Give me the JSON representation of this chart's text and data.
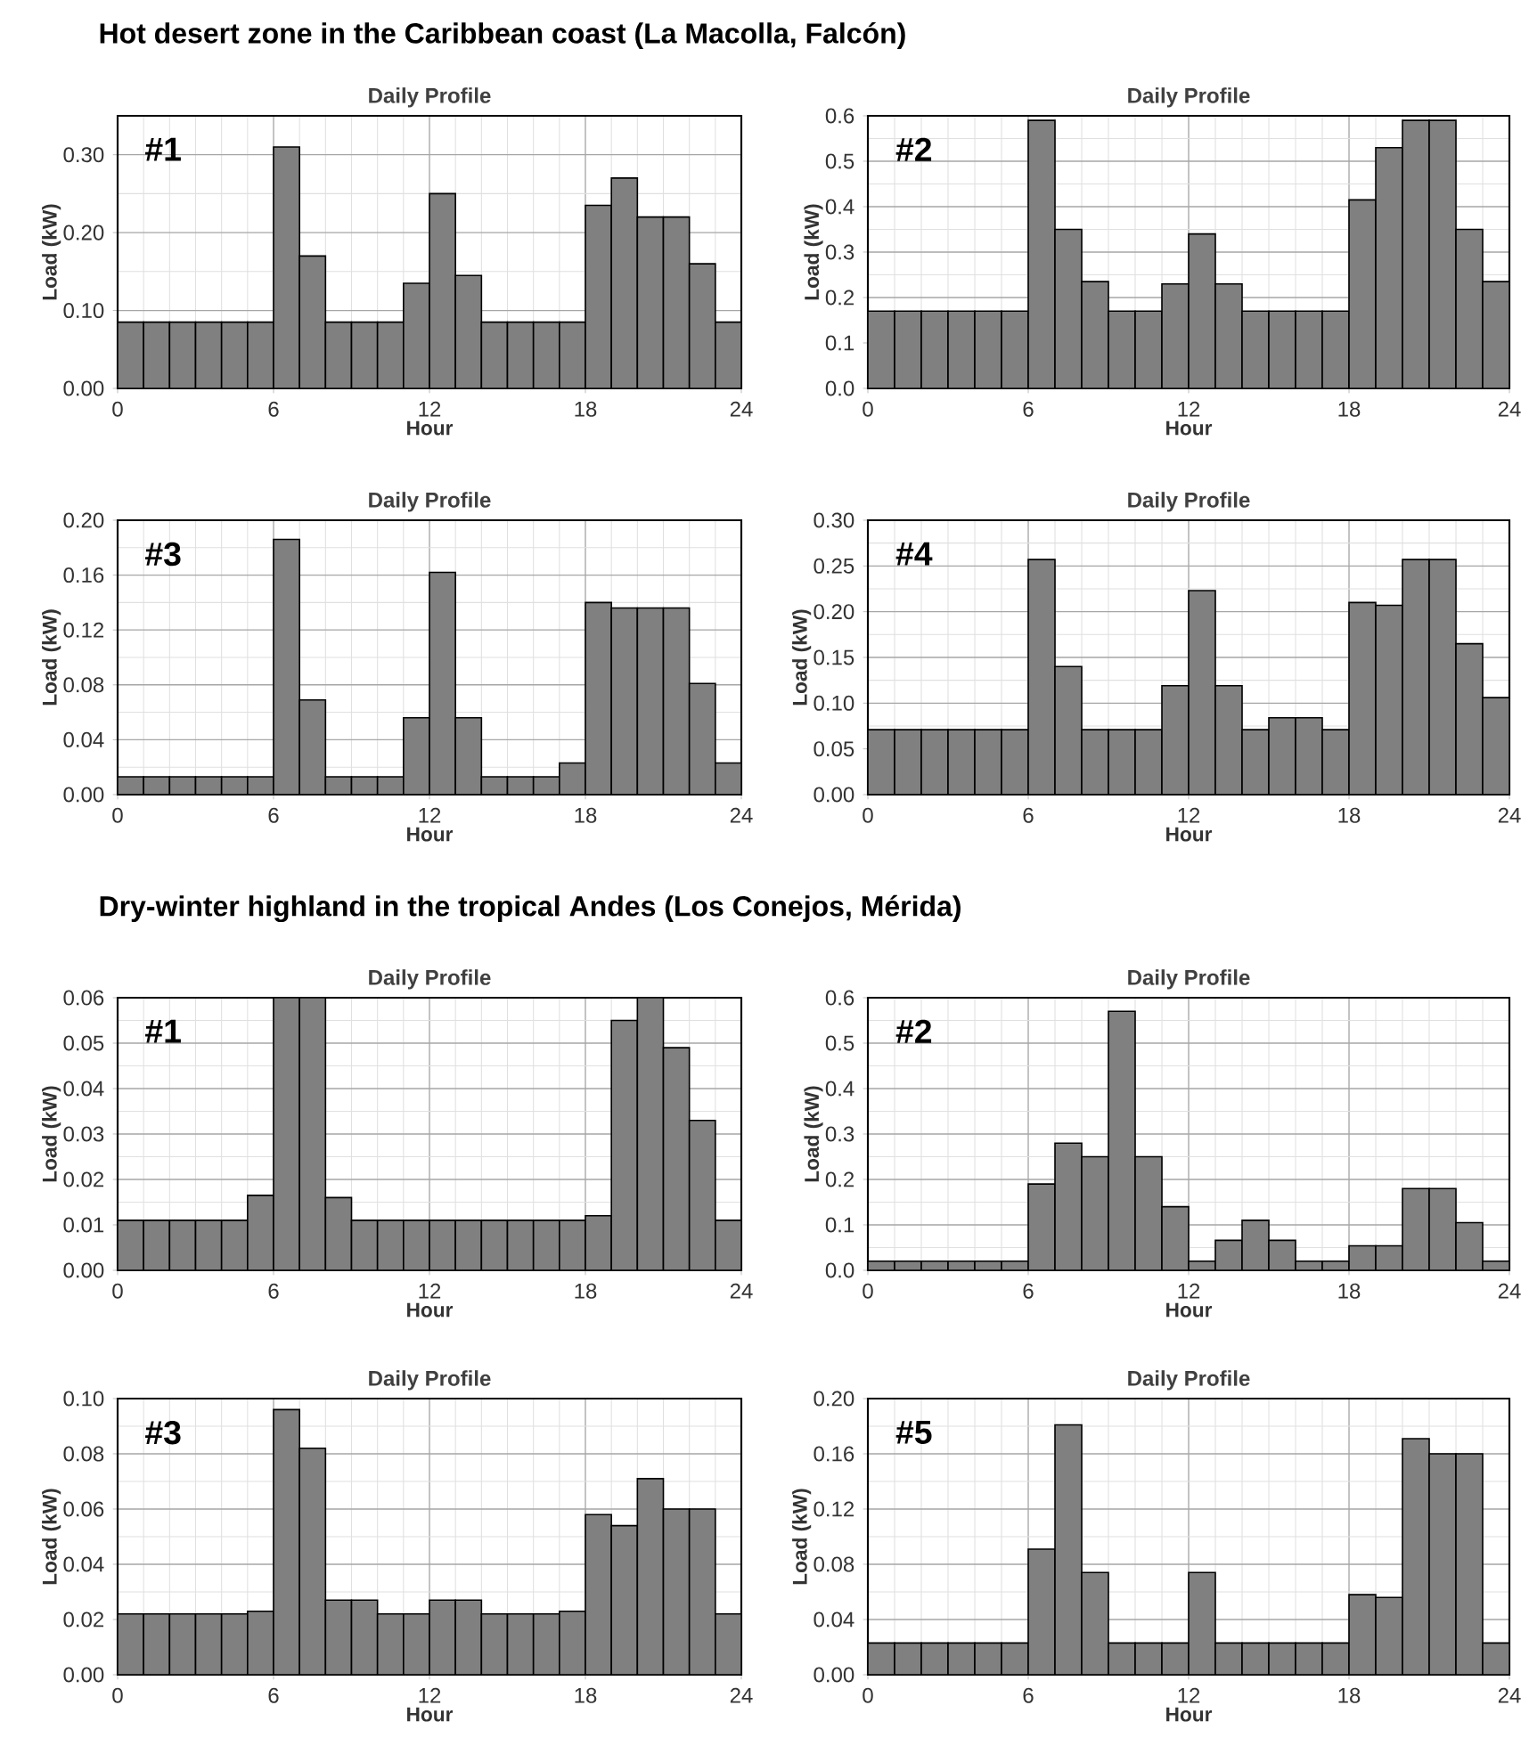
{
  "chart_data": [
    {
      "type": "other",
      "title": "Hot desert zone in the Caribbean coast (La Macolla, Falcón)"
    },
    {
      "type": "histogram",
      "title": "Daily Profile",
      "xlabel": "Hour",
      "ylabel": "Load (kW)",
      "annotations": [
        "#1"
      ],
      "color": "#808080",
      "grid": true,
      "bins": [
        0,
        1,
        2,
        3,
        4,
        5,
        6,
        7,
        8,
        9,
        10,
        11,
        12,
        13,
        14,
        15,
        16,
        17,
        18,
        19,
        20,
        21,
        22,
        23,
        24
      ],
      "values": [
        0.085,
        0.085,
        0.085,
        0.085,
        0.085,
        0.085,
        0.31,
        0.17,
        0.085,
        0.085,
        0.085,
        0.135,
        0.25,
        0.145,
        0.085,
        0.085,
        0.085,
        0.085,
        0.235,
        0.27,
        0.22,
        0.22,
        0.16,
        0.085
      ],
      "xlim": [
        0,
        24
      ],
      "xticks": [
        0,
        6,
        12,
        18,
        24
      ],
      "ylim": [
        0,
        0.35
      ],
      "yticks": [
        {
          "value": 0,
          "label": "0.00"
        },
        {
          "value": 0.1,
          "label": "0.10"
        },
        {
          "value": 0.2,
          "label": "0.20"
        },
        {
          "value": 0.3,
          "label": "0.30"
        }
      ]
    },
    {
      "type": "histogram",
      "title": "Daily Profile",
      "xlabel": "Hour",
      "ylabel": "Load (kW)",
      "annotations": [
        "#2"
      ],
      "color": "#808080",
      "grid": true,
      "bins": [
        0,
        1,
        2,
        3,
        4,
        5,
        6,
        7,
        8,
        9,
        10,
        11,
        12,
        13,
        14,
        15,
        16,
        17,
        18,
        19,
        20,
        21,
        22,
        23,
        24
      ],
      "values": [
        0.17,
        0.17,
        0.17,
        0.17,
        0.17,
        0.17,
        0.59,
        0.35,
        0.235,
        0.17,
        0.17,
        0.23,
        0.34,
        0.23,
        0.17,
        0.17,
        0.17,
        0.17,
        0.415,
        0.53,
        0.59,
        0.59,
        0.35,
        0.235
      ],
      "xlim": [
        0,
        24
      ],
      "xticks": [
        0,
        6,
        12,
        18,
        24
      ],
      "ylim": [
        0,
        0.6
      ],
      "yticks": [
        {
          "value": 0,
          "label": "0.0"
        },
        {
          "value": 0.1,
          "label": "0.1"
        },
        {
          "value": 0.2,
          "label": "0.2"
        },
        {
          "value": 0.3,
          "label": "0.3"
        },
        {
          "value": 0.4,
          "label": "0.4"
        },
        {
          "value": 0.5,
          "label": "0.5"
        },
        {
          "value": 0.6,
          "label": "0.6"
        }
      ]
    },
    {
      "type": "histogram",
      "title": "Daily Profile",
      "xlabel": "Hour",
      "ylabel": "Load (kW)",
      "annotations": [
        "#3"
      ],
      "color": "#808080",
      "grid": true,
      "bins": [
        0,
        1,
        2,
        3,
        4,
        5,
        6,
        7,
        8,
        9,
        10,
        11,
        12,
        13,
        14,
        15,
        16,
        17,
        18,
        19,
        20,
        21,
        22,
        23,
        24
      ],
      "values": [
        0.013,
        0.013,
        0.013,
        0.013,
        0.013,
        0.013,
        0.186,
        0.069,
        0.013,
        0.013,
        0.013,
        0.056,
        0.162,
        0.056,
        0.013,
        0.013,
        0.013,
        0.023,
        0.14,
        0.136,
        0.136,
        0.136,
        0.081,
        0.023
      ],
      "xlim": [
        0,
        24
      ],
      "xticks": [
        0,
        6,
        12,
        18,
        24
      ],
      "ylim": [
        0,
        0.2
      ],
      "yticks": [
        {
          "value": 0,
          "label": "0.00"
        },
        {
          "value": 0.04,
          "label": "0.04"
        },
        {
          "value": 0.08,
          "label": "0.08"
        },
        {
          "value": 0.12,
          "label": "0.12"
        },
        {
          "value": 0.16,
          "label": "0.16"
        },
        {
          "value": 0.2,
          "label": "0.20"
        }
      ]
    },
    {
      "type": "histogram",
      "title": "Daily Profile",
      "xlabel": "Hour",
      "ylabel": "Load (kW)",
      "annotations": [
        "#4"
      ],
      "color": "#808080",
      "grid": true,
      "bins": [
        0,
        1,
        2,
        3,
        4,
        5,
        6,
        7,
        8,
        9,
        10,
        11,
        12,
        13,
        14,
        15,
        16,
        17,
        18,
        19,
        20,
        21,
        22,
        23,
        24
      ],
      "values": [
        0.071,
        0.071,
        0.071,
        0.071,
        0.071,
        0.071,
        0.257,
        0.14,
        0.071,
        0.071,
        0.071,
        0.119,
        0.223,
        0.119,
        0.071,
        0.084,
        0.084,
        0.071,
        0.21,
        0.207,
        0.257,
        0.257,
        0.165,
        0.106
      ],
      "xlim": [
        0,
        24
      ],
      "xticks": [
        0,
        6,
        12,
        18,
        24
      ],
      "ylim": [
        0,
        0.3
      ],
      "yticks": [
        {
          "value": 0,
          "label": "0.00"
        },
        {
          "value": 0.05,
          "label": "0.05"
        },
        {
          "value": 0.1,
          "label": "0.10"
        },
        {
          "value": 0.15,
          "label": "0.15"
        },
        {
          "value": 0.2,
          "label": "0.20"
        },
        {
          "value": 0.25,
          "label": "0.25"
        },
        {
          "value": 0.3,
          "label": "0.30"
        }
      ]
    },
    {
      "type": "other",
      "title": "Dry-winter highland in the tropical Andes (Los Conejos, Mérida)"
    },
    {
      "type": "histogram",
      "title": "Daily Profile",
      "xlabel": "Hour",
      "ylabel": "Load (kW)",
      "annotations": [
        "#1"
      ],
      "color": "#808080",
      "grid": true,
      "bins": [
        0,
        1,
        2,
        3,
        4,
        5,
        6,
        7,
        8,
        9,
        10,
        11,
        12,
        13,
        14,
        15,
        16,
        17,
        18,
        19,
        20,
        21,
        22,
        23,
        24
      ],
      "values": [
        0.011,
        0.011,
        0.011,
        0.011,
        0.011,
        0.0165,
        0.06,
        0.06,
        0.016,
        0.011,
        0.011,
        0.011,
        0.011,
        0.011,
        0.011,
        0.011,
        0.011,
        0.011,
        0.012,
        0.055,
        0.06,
        0.049,
        0.033,
        0.011
      ],
      "xlim": [
        0,
        24
      ],
      "xticks": [
        0,
        6,
        12,
        18,
        24
      ],
      "ylim": [
        0,
        0.06
      ],
      "yticks": [
        {
          "value": 0,
          "label": "0.00"
        },
        {
          "value": 0.01,
          "label": "0.01"
        },
        {
          "value": 0.02,
          "label": "0.02"
        },
        {
          "value": 0.03,
          "label": "0.03"
        },
        {
          "value": 0.04,
          "label": "0.04"
        },
        {
          "value": 0.05,
          "label": "0.05"
        },
        {
          "value": 0.06,
          "label": "0.06"
        }
      ]
    },
    {
      "type": "histogram",
      "title": "Daily Profile",
      "xlabel": "Hour",
      "ylabel": "Load (kW)",
      "annotations": [
        "#2"
      ],
      "color": "#808080",
      "grid": true,
      "bins": [
        0,
        1,
        2,
        3,
        4,
        5,
        6,
        7,
        8,
        9,
        10,
        11,
        12,
        13,
        14,
        15,
        16,
        17,
        18,
        19,
        20,
        21,
        22,
        23,
        24
      ],
      "values": [
        0.02,
        0.02,
        0.02,
        0.02,
        0.02,
        0.02,
        0.19,
        0.28,
        0.25,
        0.57,
        0.25,
        0.14,
        0.02,
        0.066,
        0.11,
        0.066,
        0.02,
        0.02,
        0.054,
        0.054,
        0.18,
        0.18,
        0.105,
        0.02
      ],
      "xlim": [
        0,
        24
      ],
      "xticks": [
        0,
        6,
        12,
        18,
        24
      ],
      "ylim": [
        0,
        0.6
      ],
      "yticks": [
        {
          "value": 0,
          "label": "0.0"
        },
        {
          "value": 0.1,
          "label": "0.1"
        },
        {
          "value": 0.2,
          "label": "0.2"
        },
        {
          "value": 0.3,
          "label": "0.3"
        },
        {
          "value": 0.4,
          "label": "0.4"
        },
        {
          "value": 0.5,
          "label": "0.5"
        },
        {
          "value": 0.6,
          "label": "0.6"
        }
      ]
    },
    {
      "type": "histogram",
      "title": "Daily Profile",
      "xlabel": "Hour",
      "ylabel": "Load (kW)",
      "annotations": [
        "#3"
      ],
      "color": "#808080",
      "grid": true,
      "bins": [
        0,
        1,
        2,
        3,
        4,
        5,
        6,
        7,
        8,
        9,
        10,
        11,
        12,
        13,
        14,
        15,
        16,
        17,
        18,
        19,
        20,
        21,
        22,
        23,
        24
      ],
      "values": [
        0.022,
        0.022,
        0.022,
        0.022,
        0.022,
        0.023,
        0.096,
        0.082,
        0.027,
        0.027,
        0.022,
        0.022,
        0.027,
        0.027,
        0.022,
        0.022,
        0.022,
        0.023,
        0.058,
        0.054,
        0.071,
        0.06,
        0.06,
        0.022
      ],
      "xlim": [
        0,
        24
      ],
      "xticks": [
        0,
        6,
        12,
        18,
        24
      ],
      "ylim": [
        0,
        0.1
      ],
      "yticks": [
        {
          "value": 0,
          "label": "0.00"
        },
        {
          "value": 0.02,
          "label": "0.02"
        },
        {
          "value": 0.04,
          "label": "0.04"
        },
        {
          "value": 0.06,
          "label": "0.06"
        },
        {
          "value": 0.08,
          "label": "0.08"
        },
        {
          "value": 0.1,
          "label": "0.10"
        }
      ]
    },
    {
      "type": "histogram",
      "title": "Daily Profile",
      "xlabel": "Hour",
      "ylabel": "Load (kW)",
      "annotations": [
        "#5"
      ],
      "color": "#808080",
      "grid": true,
      "bins": [
        0,
        1,
        2,
        3,
        4,
        5,
        6,
        7,
        8,
        9,
        10,
        11,
        12,
        13,
        14,
        15,
        16,
        17,
        18,
        19,
        20,
        21,
        22,
        23,
        24
      ],
      "values": [
        0.023,
        0.023,
        0.023,
        0.023,
        0.023,
        0.023,
        0.091,
        0.181,
        0.074,
        0.023,
        0.023,
        0.023,
        0.074,
        0.023,
        0.023,
        0.023,
        0.023,
        0.023,
        0.058,
        0.056,
        0.171,
        0.16,
        0.16,
        0.023
      ],
      "xlim": [
        0,
        24
      ],
      "xticks": [
        0,
        6,
        12,
        18,
        24
      ],
      "ylim": [
        0,
        0.2
      ],
      "yticks": [
        {
          "value": 0,
          "label": "0.00"
        },
        {
          "value": 0.04,
          "label": "0.04"
        },
        {
          "value": 0.08,
          "label": "0.08"
        },
        {
          "value": 0.12,
          "label": "0.12"
        },
        {
          "value": 0.16,
          "label": "0.16"
        },
        {
          "value": 0.2,
          "label": "0.20"
        }
      ]
    }
  ]
}
